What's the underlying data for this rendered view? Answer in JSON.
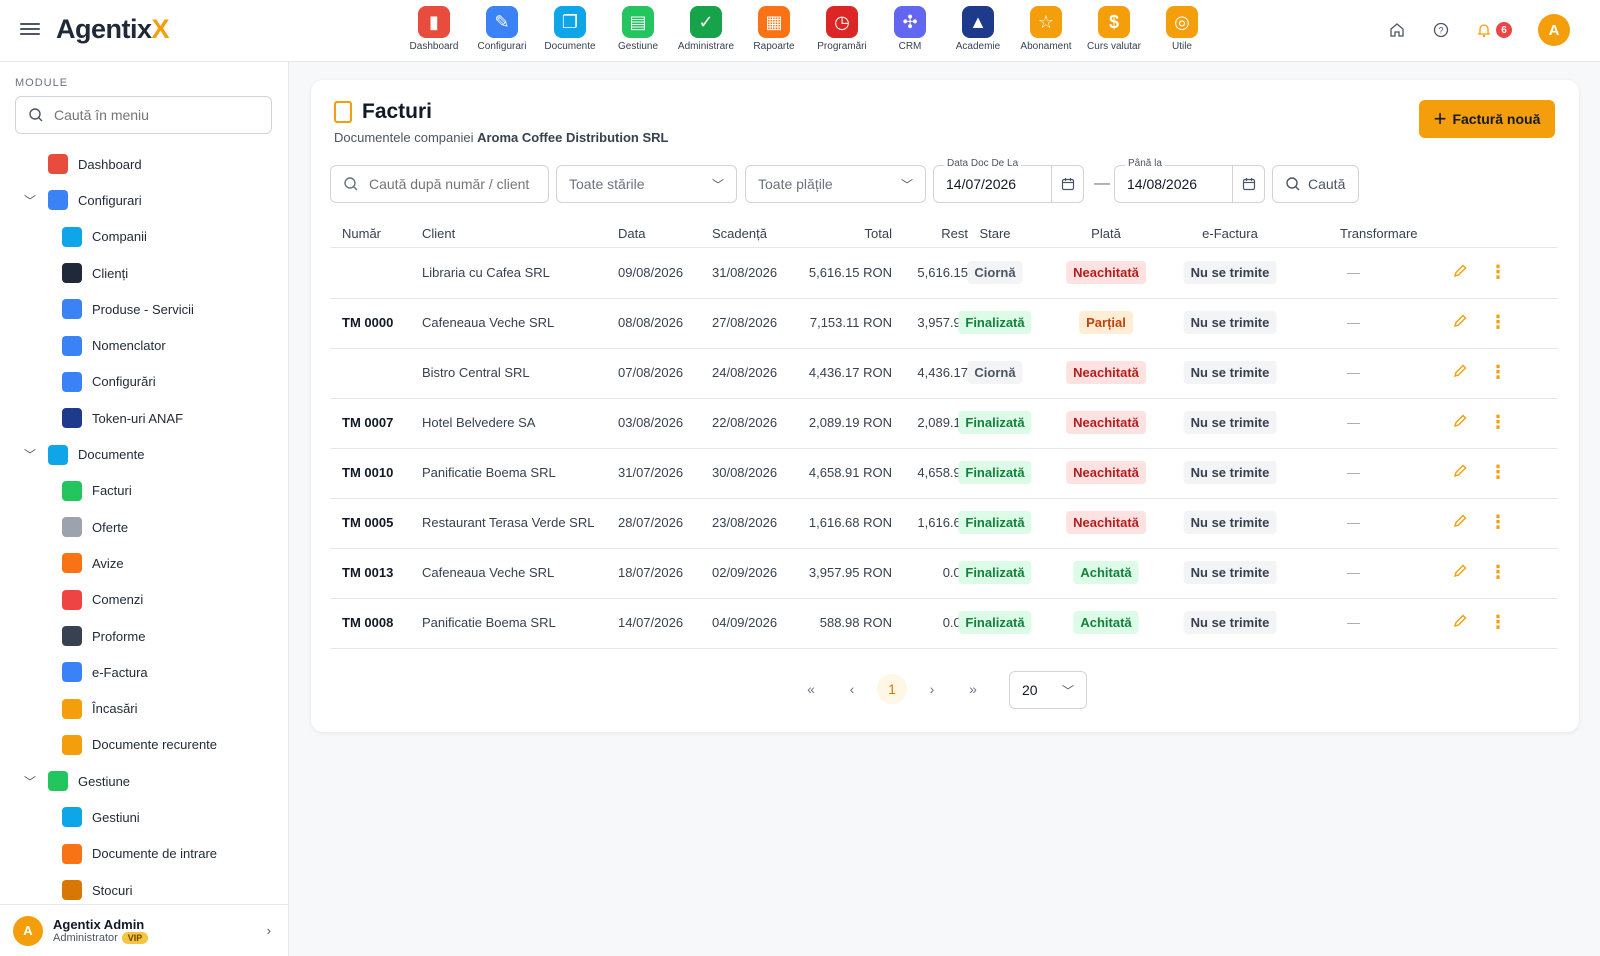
{
  "app": {
    "logo_main": "Agentix",
    "logo_accent": "X"
  },
  "topnav": [
    {
      "label": "Dashboard",
      "icon": "dashboard-icon",
      "color": "#e74c3c",
      "glyph": "▮"
    },
    {
      "label": "Configurari",
      "icon": "wrench-icon",
      "color": "#3b82f6",
      "glyph": "✎"
    },
    {
      "label": "Documente",
      "icon": "documents-icon",
      "color": "#0ea5e9",
      "glyph": "❐"
    },
    {
      "label": "Gestiune",
      "icon": "books-icon",
      "color": "#22c55e",
      "glyph": "▤"
    },
    {
      "label": "Administrare",
      "icon": "shield-icon",
      "color": "#16a34a",
      "glyph": "✓"
    },
    {
      "label": "Rapoarte",
      "icon": "reports-icon",
      "color": "#f97316",
      "glyph": "▦"
    },
    {
      "label": "Programări",
      "icon": "clock-icon",
      "color": "#dc2626",
      "glyph": "◷"
    },
    {
      "label": "CRM",
      "icon": "crm-icon",
      "color": "#6366f1",
      "glyph": "✣"
    },
    {
      "label": "Academie",
      "icon": "graduation-icon",
      "color": "#1e3a8a",
      "glyph": "▲"
    },
    {
      "label": "Abonament",
      "icon": "star-icon",
      "color": "#f59e0b",
      "glyph": "☆"
    },
    {
      "label": "Curs valutar",
      "icon": "money-icon",
      "color": "#f59e0b",
      "glyph": "$"
    },
    {
      "label": "Utile",
      "icon": "compass-icon",
      "color": "#f59e0b",
      "glyph": "◎"
    }
  ],
  "notifications_count": "6",
  "user_initial": "A",
  "sidebar": {
    "section_label": "MODULE",
    "search_placeholder": "Caută în meniu",
    "items": [
      {
        "label": "Dashboard",
        "level": "lvl0",
        "color": "#e74c3c",
        "icon": "dashboard-icon"
      },
      {
        "label": "Configurari",
        "level": "lvl0c",
        "color": "#3b82f6",
        "icon": "wrench-icon",
        "chev": "﹀"
      },
      {
        "label": "Companii",
        "level": "lvl1",
        "color": "#0ea5e9",
        "icon": "buildings-icon"
      },
      {
        "label": "Clienți",
        "level": "lvl1",
        "color": "#1f2937",
        "icon": "people-icon"
      },
      {
        "label": "Produse - Servicii",
        "level": "lvl1",
        "color": "#3b82f6",
        "icon": "products-icon"
      },
      {
        "label": "Nomenclator",
        "level": "lvl1",
        "color": "#3b82f6",
        "icon": "list-icon"
      },
      {
        "label": "Configurări",
        "level": "lvl1",
        "color": "#3b82f6",
        "icon": "settings-list-icon"
      },
      {
        "label": "Token-uri ANAF",
        "level": "lvl1",
        "color": "#1e3a8a",
        "icon": "shield-lock-icon"
      },
      {
        "label": "Documente",
        "level": "lvl0c",
        "color": "#0ea5e9",
        "icon": "documents-icon",
        "chev": "﹀"
      },
      {
        "label": "Facturi",
        "level": "lvl1",
        "color": "#22c55e",
        "icon": "invoice-icon"
      },
      {
        "label": "Oferte",
        "level": "lvl1",
        "color": "#9ca3af",
        "icon": "offer-icon"
      },
      {
        "label": "Avize",
        "level": "lvl1",
        "color": "#f97316",
        "icon": "truck-icon"
      },
      {
        "label": "Comenzi",
        "level": "lvl1",
        "color": "#ef4444",
        "icon": "cart-icon"
      },
      {
        "label": "Proforme",
        "level": "lvl1",
        "color": "#374151",
        "icon": "calculator-icon"
      },
      {
        "label": "e-Factura",
        "level": "lvl1",
        "color": "#3b82f6",
        "icon": "cloud-icon"
      },
      {
        "label": "Încasări",
        "level": "lvl1",
        "color": "#f59e0b",
        "icon": "chart-up-icon"
      },
      {
        "label": "Documente recurente",
        "level": "lvl1",
        "color": "#f59e0b",
        "icon": "refresh-icon"
      },
      {
        "label": "Gestiune",
        "level": "lvl0c",
        "color": "#22c55e",
        "icon": "books-icon",
        "chev": "﹀"
      },
      {
        "label": "Gestiuni",
        "level": "lvl1",
        "color": "#0ea5e9",
        "icon": "store-icon"
      },
      {
        "label": "Documente de intrare",
        "level": "lvl1",
        "color": "#f97316",
        "icon": "inbound-icon"
      },
      {
        "label": "Stocuri",
        "level": "lvl1",
        "color": "#d97706",
        "icon": "boxes-icon"
      }
    ],
    "footer": {
      "name": "Agentix Admin",
      "role": "Administrator",
      "badge": "VIP",
      "initial": "A"
    }
  },
  "page": {
    "title": "Facturi",
    "subtitle_prefix": "Documentele companiei",
    "company": "Aroma Coffee Distribution SRL",
    "new_button": "Factură nouă"
  },
  "filters": {
    "search_placeholder": "Caută după număr / client",
    "status": "Toate stările",
    "payments": "Toate plățile",
    "date_from_label": "Data Doc De La",
    "date_from": "14/07/2026",
    "date_to_label": "Până la",
    "date_to": "14/08/2026",
    "search_button": "Caută"
  },
  "table": {
    "headers": {
      "num": "Număr",
      "client": "Client",
      "data": "Data",
      "scad": "Scadență",
      "total": "Total",
      "rest": "Rest",
      "stare": "Stare",
      "plata": "Plată",
      "ef": "e-Factura",
      "trans": "Transformare"
    },
    "rows": [
      {
        "num": "",
        "client": "Libraria cu Cafea SRL",
        "data": "09/08/2026",
        "scad": "31/08/2026",
        "total": "5,616.15 RON",
        "rest": "5,616.15",
        "stare": "Ciornă",
        "stare_cls": "p-ciorna",
        "plata": "Neachitată",
        "plata_cls": "p-neach",
        "ef": "Nu se trimite",
        "trans": "—"
      },
      {
        "num": "TM 0000",
        "client": "Cafeneaua Veche SRL",
        "data": "08/08/2026",
        "scad": "27/08/2026",
        "total": "7,153.11 RON",
        "rest": "3,957.95",
        "stare": "Finalizată",
        "stare_cls": "p-final",
        "plata": "Parțial",
        "plata_cls": "p-partial",
        "ef": "Nu se trimite",
        "trans": "—"
      },
      {
        "num": "",
        "client": "Bistro Central SRL",
        "data": "07/08/2026",
        "scad": "24/08/2026",
        "total": "4,436.17 RON",
        "rest": "4,436.17",
        "stare": "Ciornă",
        "stare_cls": "p-ciorna",
        "plata": "Neachitată",
        "plata_cls": "p-neach",
        "ef": "Nu se trimite",
        "trans": "—"
      },
      {
        "num": "TM 0007",
        "client": "Hotel Belvedere SA",
        "data": "03/08/2026",
        "scad": "22/08/2026",
        "total": "2,089.19 RON",
        "rest": "2,089.19",
        "stare": "Finalizată",
        "stare_cls": "p-final",
        "plata": "Neachitată",
        "plata_cls": "p-neach",
        "ef": "Nu se trimite",
        "trans": "—"
      },
      {
        "num": "TM 0010",
        "client": "Panificatie Boema SRL",
        "data": "31/07/2026",
        "scad": "30/08/2026",
        "total": "4,658.91 RON",
        "rest": "4,658.91",
        "stare": "Finalizată",
        "stare_cls": "p-final",
        "plata": "Neachitată",
        "plata_cls": "p-neach",
        "ef": "Nu se trimite",
        "trans": "—"
      },
      {
        "num": "TM 0005",
        "client": "Restaurant Terasa Verde SRL",
        "data": "28/07/2026",
        "scad": "23/08/2026",
        "total": "1,616.68 RON",
        "rest": "1,616.68",
        "stare": "Finalizată",
        "stare_cls": "p-final",
        "plata": "Neachitată",
        "plata_cls": "p-neach",
        "ef": "Nu se trimite",
        "trans": "—"
      },
      {
        "num": "TM 0013",
        "client": "Cafeneaua Veche SRL",
        "data": "18/07/2026",
        "scad": "02/09/2026",
        "total": "3,957.95 RON",
        "rest": "0.00",
        "stare": "Finalizată",
        "stare_cls": "p-final",
        "plata": "Achitată",
        "plata_cls": "p-achit",
        "ef": "Nu se trimite",
        "trans": "—"
      },
      {
        "num": "TM 0008",
        "client": "Panificatie Boema SRL",
        "data": "14/07/2026",
        "scad": "04/09/2026",
        "total": "588.98 RON",
        "rest": "0.00",
        "stare": "Finalizată",
        "stare_cls": "p-final",
        "plata": "Achitată",
        "plata_cls": "p-achit",
        "ef": "Nu se trimite",
        "trans": "—"
      }
    ]
  },
  "pagination": {
    "current_page": "1",
    "page_size": "20"
  }
}
